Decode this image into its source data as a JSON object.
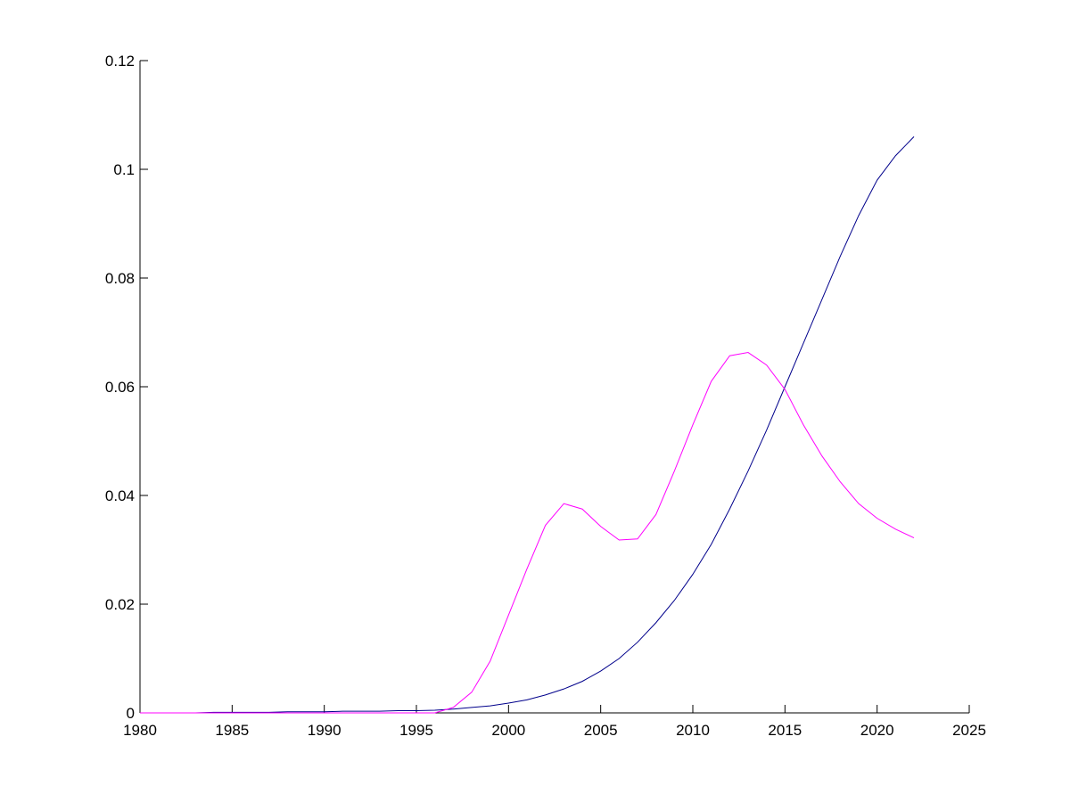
{
  "chart_data": {
    "type": "line",
    "x": [
      1980,
      1981,
      1982,
      1983,
      1984,
      1985,
      1986,
      1987,
      1988,
      1989,
      1990,
      1991,
      1992,
      1993,
      1994,
      1995,
      1996,
      1997,
      1998,
      1999,
      2000,
      2001,
      2002,
      2003,
      2004,
      2005,
      2006,
      2007,
      2008,
      2009,
      2010,
      2011,
      2012,
      2013,
      2014,
      2015,
      2016,
      2017,
      2018,
      2019,
      2020,
      2021,
      2022
    ],
    "series": [
      {
        "color": "#00008b",
        "values": [
          0,
          0,
          0,
          0,
          0.0001,
          0.0001,
          0.0001,
          0.0001,
          0.0002,
          0.0002,
          0.0002,
          0.0003,
          0.0003,
          0.0003,
          0.0004,
          0.0004,
          0.0005,
          0.0007,
          0.001,
          0.0013,
          0.0018,
          0.0024,
          0.0033,
          0.0044,
          0.0058,
          0.0077,
          0.01,
          0.013,
          0.0166,
          0.0207,
          0.0255,
          0.031,
          0.0375,
          0.0445,
          0.052,
          0.06,
          0.068,
          0.076,
          0.084,
          0.0915,
          0.098,
          0.1025,
          0.106
        ]
      },
      {
        "color": "#ff00ff",
        "values": [
          0,
          0,
          0,
          0,
          0,
          0,
          0,
          0,
          0,
          0,
          0,
          0,
          0,
          0,
          0,
          0,
          0,
          0.001,
          0.0038,
          0.0095,
          0.018,
          0.0265,
          0.0345,
          0.0385,
          0.0375,
          0.0343,
          0.0318,
          0.032,
          0.0365,
          0.0445,
          0.053,
          0.061,
          0.0657,
          0.0663,
          0.064,
          0.0595,
          0.053,
          0.0473,
          0.0425,
          0.0385,
          0.0358,
          0.0338,
          0.0322
        ]
      }
    ],
    "xlim": [
      1980,
      2025
    ],
    "xticks": [
      1980,
      1985,
      1990,
      1995,
      2000,
      2005,
      2010,
      2015,
      2020,
      2025
    ],
    "ylim": [
      0,
      0.12
    ],
    "yticks": [
      0,
      0.02,
      0.04,
      0.06,
      0.08,
      0.1,
      0.12
    ]
  }
}
